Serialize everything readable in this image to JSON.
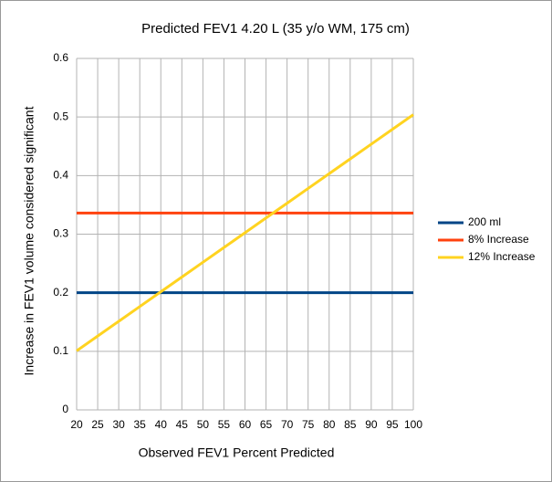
{
  "chart_data": {
    "type": "line",
    "title": "Predicted FEV1 4.20 L (35 y/o WM, 175 cm)",
    "x_label": "Observed FEV1 Percent Predicted",
    "y_label": "Increase in FEV1 volume considered significant",
    "x": [
      20,
      25,
      30,
      35,
      40,
      45,
      50,
      55,
      60,
      65,
      70,
      75,
      80,
      85,
      90,
      95,
      100
    ],
    "series": [
      {
        "name": "200 ml",
        "color": "#004586",
        "values": [
          0.2,
          0.2,
          0.2,
          0.2,
          0.2,
          0.2,
          0.2,
          0.2,
          0.2,
          0.2,
          0.2,
          0.2,
          0.2,
          0.2,
          0.2,
          0.2,
          0.2
        ]
      },
      {
        "name": "8% Increase",
        "color": "#ff420e",
        "values": [
          0.336,
          0.336,
          0.336,
          0.336,
          0.336,
          0.336,
          0.336,
          0.336,
          0.336,
          0.336,
          0.336,
          0.336,
          0.336,
          0.336,
          0.336,
          0.336,
          0.336
        ]
      },
      {
        "name": "12% Increase",
        "color": "#ffd320",
        "values": [
          0.1008,
          0.126,
          0.1512,
          0.1764,
          0.2016,
          0.2268,
          0.252,
          0.2772,
          0.3024,
          0.3276,
          0.3528,
          0.378,
          0.4032,
          0.4284,
          0.4536,
          0.4788,
          0.504
        ]
      }
    ],
    "xlim": [
      20,
      100
    ],
    "xticks": [
      20,
      25,
      30,
      35,
      40,
      45,
      50,
      55,
      60,
      65,
      70,
      75,
      80,
      85,
      90,
      95,
      100
    ],
    "ylim": [
      0,
      0.6
    ],
    "yticks": [
      0,
      0.1,
      0.2,
      0.3,
      0.4,
      0.5,
      0.6
    ],
    "grid": true,
    "legend": "right"
  }
}
